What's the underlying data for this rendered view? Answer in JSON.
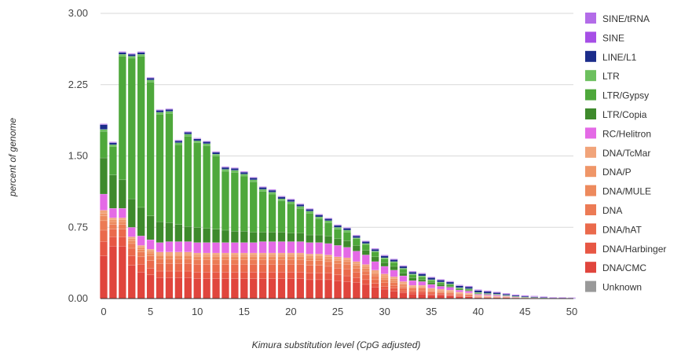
{
  "chart_data": {
    "type": "bar",
    "stacked": true,
    "title": "",
    "xlabel": "Kimura substitution level (CpG adjusted)",
    "ylabel": "percent of genome",
    "xlim": [
      0,
      50
    ],
    "ylim": [
      0,
      3.0
    ],
    "y_ticks": [
      "0.00",
      "0.75",
      "1.50",
      "2.25",
      "3.00"
    ],
    "x_ticks": [
      "0",
      "5",
      "10",
      "15",
      "20",
      "25",
      "30",
      "35",
      "40",
      "45",
      "50"
    ],
    "grid": true,
    "legend_position": "right",
    "categories": [
      0,
      1,
      2,
      3,
      4,
      5,
      6,
      7,
      8,
      9,
      10,
      11,
      12,
      13,
      14,
      15,
      16,
      17,
      18,
      19,
      20,
      21,
      22,
      23,
      24,
      25,
      26,
      27,
      28,
      29,
      30,
      31,
      32,
      33,
      34,
      35,
      36,
      37,
      38,
      39,
      40,
      41,
      42,
      43,
      44,
      45,
      46,
      47,
      48,
      49,
      50
    ],
    "series": [
      {
        "name": "Unknown",
        "color": "#999999",
        "values": [
          0,
          0,
          0,
          0,
          0,
          0,
          0,
          0,
          0,
          0,
          0,
          0,
          0,
          0,
          0,
          0,
          0,
          0,
          0,
          0,
          0,
          0,
          0,
          0,
          0,
          0,
          0,
          0,
          0,
          0,
          0,
          0,
          0,
          0,
          0,
          0,
          0,
          0,
          0,
          0,
          0,
          0,
          0,
          0,
          0,
          0,
          0,
          0,
          0,
          0,
          0
        ]
      },
      {
        "name": "DNA/CMC",
        "color": "#e0453d",
        "values": [
          0.45,
          0.55,
          0.55,
          0.35,
          0.28,
          0.25,
          0.22,
          0.22,
          0.22,
          0.22,
          0.21,
          0.21,
          0.21,
          0.21,
          0.21,
          0.21,
          0.21,
          0.21,
          0.21,
          0.21,
          0.21,
          0.21,
          0.2,
          0.2,
          0.2,
          0.19,
          0.18,
          0.17,
          0.15,
          0.12,
          0.1,
          0.08,
          0.06,
          0.05,
          0.05,
          0.04,
          0.04,
          0.03,
          0.02,
          0.02,
          0.01,
          0.01,
          0.01,
          0.01,
          0.005,
          0.004,
          0.003,
          0.002,
          0.001,
          0.001,
          0
        ]
      },
      {
        "name": "DNA/Harbinger",
        "color": "#e75744",
        "values": [
          0.15,
          0.1,
          0.1,
          0.1,
          0.08,
          0.07,
          0.07,
          0.07,
          0.07,
          0.07,
          0.07,
          0.07,
          0.07,
          0.07,
          0.07,
          0.07,
          0.07,
          0.07,
          0.07,
          0.07,
          0.07,
          0.07,
          0.07,
          0.07,
          0.07,
          0.06,
          0.06,
          0.05,
          0.05,
          0.04,
          0.03,
          0.03,
          0.02,
          0.02,
          0.02,
          0.01,
          0.01,
          0.01,
          0.01,
          0.005,
          0.005,
          0.004,
          0.003,
          0.002,
          0.002,
          0.001,
          0.001,
          0.001,
          0,
          0,
          0
        ]
      },
      {
        "name": "DNA/hAT",
        "color": "#ea6a4c",
        "values": [
          0.12,
          0.08,
          0.08,
          0.08,
          0.08,
          0.08,
          0.08,
          0.08,
          0.08,
          0.08,
          0.08,
          0.08,
          0.08,
          0.08,
          0.08,
          0.08,
          0.08,
          0.08,
          0.08,
          0.08,
          0.08,
          0.08,
          0.08,
          0.08,
          0.07,
          0.07,
          0.07,
          0.06,
          0.05,
          0.04,
          0.04,
          0.03,
          0.03,
          0.02,
          0.02,
          0.02,
          0.01,
          0.01,
          0.01,
          0.01,
          0.005,
          0.005,
          0.004,
          0.003,
          0.002,
          0.001,
          0.001,
          0.001,
          0,
          0,
          0
        ]
      },
      {
        "name": "DNA",
        "color": "#ec7b55",
        "values": [
          0.1,
          0.05,
          0.05,
          0.05,
          0.05,
          0.05,
          0.05,
          0.05,
          0.05,
          0.05,
          0.05,
          0.05,
          0.05,
          0.05,
          0.05,
          0.05,
          0.05,
          0.05,
          0.05,
          0.05,
          0.05,
          0.05,
          0.05,
          0.05,
          0.05,
          0.05,
          0.05,
          0.04,
          0.04,
          0.04,
          0.03,
          0.03,
          0.02,
          0.02,
          0.02,
          0.01,
          0.01,
          0.01,
          0.01,
          0.01,
          0.005,
          0.004,
          0.003,
          0.002,
          0.002,
          0.001,
          0.001,
          0.001,
          0,
          0,
          0
        ]
      },
      {
        "name": "DNA/MULE",
        "color": "#ed8a5d",
        "values": [
          0.05,
          0.03,
          0.03,
          0.03,
          0.03,
          0.03,
          0.03,
          0.03,
          0.03,
          0.03,
          0.03,
          0.03,
          0.03,
          0.03,
          0.03,
          0.03,
          0.03,
          0.03,
          0.03,
          0.03,
          0.03,
          0.03,
          0.03,
          0.03,
          0.03,
          0.03,
          0.03,
          0.03,
          0.03,
          0.02,
          0.02,
          0.02,
          0.02,
          0.01,
          0.01,
          0.01,
          0.01,
          0.01,
          0.005,
          0.005,
          0.004,
          0.003,
          0.002,
          0.002,
          0.001,
          0.001,
          0.001,
          0,
          0,
          0,
          0
        ]
      },
      {
        "name": "DNA/P",
        "color": "#ef9668",
        "values": [
          0.03,
          0.02,
          0.02,
          0.02,
          0.02,
          0.02,
          0.02,
          0.02,
          0.02,
          0.02,
          0.02,
          0.02,
          0.02,
          0.02,
          0.02,
          0.02,
          0.02,
          0.02,
          0.02,
          0.02,
          0.02,
          0.02,
          0.02,
          0.02,
          0.02,
          0.02,
          0.02,
          0.02,
          0.02,
          0.02,
          0.02,
          0.02,
          0.01,
          0.01,
          0.01,
          0.01,
          0.01,
          0.01,
          0.005,
          0.005,
          0.004,
          0.003,
          0.002,
          0.002,
          0.001,
          0.001,
          0.001,
          0,
          0,
          0,
          0
        ]
      },
      {
        "name": "DNA/TcMar",
        "color": "#f1a47a",
        "values": [
          0.03,
          0.02,
          0.02,
          0.02,
          0.02,
          0.02,
          0.02,
          0.02,
          0.02,
          0.02,
          0.02,
          0.02,
          0.02,
          0.02,
          0.02,
          0.02,
          0.02,
          0.02,
          0.02,
          0.02,
          0.02,
          0.02,
          0.02,
          0.02,
          0.02,
          0.02,
          0.02,
          0.02,
          0.02,
          0.02,
          0.02,
          0.02,
          0.02,
          0.01,
          0.01,
          0.01,
          0.01,
          0.01,
          0.01,
          0.005,
          0.005,
          0.004,
          0.003,
          0.002,
          0.001,
          0.001,
          0.001,
          0,
          0,
          0,
          0
        ]
      },
      {
        "name": "RC/Helitron",
        "color": "#e46ae6",
        "values": [
          0.17,
          0.1,
          0.1,
          0.1,
          0.1,
          0.1,
          0.1,
          0.11,
          0.11,
          0.11,
          0.11,
          0.11,
          0.11,
          0.11,
          0.11,
          0.11,
          0.11,
          0.12,
          0.12,
          0.12,
          0.12,
          0.12,
          0.12,
          0.12,
          0.12,
          0.12,
          0.11,
          0.11,
          0.1,
          0.09,
          0.08,
          0.07,
          0.06,
          0.05,
          0.04,
          0.04,
          0.03,
          0.03,
          0.02,
          0.02,
          0.01,
          0.01,
          0.01,
          0.005,
          0.004,
          0.003,
          0.002,
          0.001,
          0,
          0,
          0
        ]
      },
      {
        "name": "LTR/Copia",
        "color": "#3e8a2c",
        "values": [
          0.38,
          0.35,
          0.3,
          0.3,
          0.3,
          0.25,
          0.22,
          0.2,
          0.18,
          0.16,
          0.16,
          0.15,
          0.14,
          0.13,
          0.12,
          0.12,
          0.11,
          0.1,
          0.1,
          0.1,
          0.09,
          0.09,
          0.08,
          0.08,
          0.08,
          0.07,
          0.07,
          0.06,
          0.05,
          0.05,
          0.04,
          0.04,
          0.03,
          0.03,
          0.02,
          0.02,
          0.02,
          0.01,
          0.01,
          0.01,
          0.005,
          0.005,
          0.004,
          0.003,
          0.002,
          0.001,
          0.001,
          0.001,
          0,
          0,
          0
        ]
      },
      {
        "name": "LTR/Gypsy",
        "color": "#4ea83b",
        "values": [
          0.28,
          0.3,
          1.3,
          1.48,
          1.59,
          1.41,
          1.13,
          1.15,
          0.84,
          0.95,
          0.89,
          0.87,
          0.77,
          0.62,
          0.62,
          0.58,
          0.53,
          0.43,
          0.4,
          0.33,
          0.31,
          0.26,
          0.23,
          0.17,
          0.14,
          0.1,
          0.09,
          0.07,
          0.06,
          0.05,
          0.04,
          0.04,
          0.04,
          0.03,
          0.03,
          0.02,
          0.02,
          0.02,
          0.01,
          0.01,
          0.01,
          0.005,
          0.005,
          0.004,
          0.003,
          0.002,
          0.001,
          0.001,
          0.001,
          0,
          0
        ]
      },
      {
        "name": "LTR",
        "color": "#6cc05e",
        "values": [
          0.02,
          0.02,
          0.02,
          0.02,
          0.02,
          0.02,
          0.02,
          0.02,
          0.02,
          0.02,
          0.02,
          0.02,
          0.02,
          0.02,
          0.02,
          0.02,
          0.02,
          0.02,
          0.02,
          0.02,
          0.02,
          0.02,
          0.02,
          0.02,
          0.02,
          0.02,
          0.02,
          0.01,
          0.01,
          0.01,
          0.01,
          0.01,
          0.01,
          0.01,
          0.01,
          0.01,
          0.005,
          0.005,
          0.005,
          0.004,
          0.003,
          0.002,
          0.002,
          0.001,
          0.001,
          0.001,
          0,
          0,
          0,
          0,
          0
        ]
      },
      {
        "name": "LINE/L1",
        "color": "#1b2c8a",
        "values": [
          0.05,
          0.02,
          0.02,
          0.02,
          0.02,
          0.02,
          0.02,
          0.02,
          0.02,
          0.02,
          0.02,
          0.02,
          0.02,
          0.02,
          0.02,
          0.02,
          0.02,
          0.02,
          0.02,
          0.02,
          0.02,
          0.02,
          0.02,
          0.02,
          0.02,
          0.02,
          0.02,
          0.02,
          0.02,
          0.02,
          0.02,
          0.02,
          0.02,
          0.02,
          0.02,
          0.02,
          0.02,
          0.02,
          0.02,
          0.02,
          0.02,
          0.02,
          0.015,
          0.012,
          0.01,
          0.008,
          0.006,
          0.005,
          0.004,
          0.003,
          0.002
        ]
      },
      {
        "name": "SINE",
        "color": "#a64fe6",
        "values": [
          0.005,
          0.005,
          0.005,
          0.005,
          0.005,
          0.005,
          0.005,
          0.005,
          0.005,
          0.005,
          0.005,
          0.005,
          0.005,
          0.005,
          0.005,
          0.005,
          0.005,
          0.005,
          0.005,
          0.005,
          0.005,
          0.005,
          0.005,
          0.005,
          0.005,
          0.005,
          0.005,
          0.005,
          0.005,
          0.005,
          0.005,
          0.005,
          0.005,
          0.005,
          0.005,
          0.005,
          0.005,
          0.005,
          0.005,
          0.005,
          0.005,
          0.005,
          0.005,
          0.005,
          0.005,
          0.005,
          0.005,
          0.005,
          0.005,
          0.005,
          0.005
        ]
      },
      {
        "name": "SINE/tRNA",
        "color": "#b36ce8",
        "values": [
          0.005,
          0.005,
          0.005,
          0.005,
          0.005,
          0.005,
          0.005,
          0.005,
          0.005,
          0.005,
          0.005,
          0.005,
          0.005,
          0.005,
          0.005,
          0.005,
          0.005,
          0.005,
          0.005,
          0.005,
          0.005,
          0.005,
          0.005,
          0.005,
          0.005,
          0.005,
          0.005,
          0.005,
          0.005,
          0.005,
          0.005,
          0.005,
          0.005,
          0.005,
          0.005,
          0.005,
          0.005,
          0.005,
          0.005,
          0.005,
          0.005,
          0.005,
          0.005,
          0.005,
          0.005,
          0.005,
          0.005,
          0.005,
          0.005,
          0.005,
          0.005
        ]
      }
    ],
    "legend": [
      {
        "label": "SINE/tRNA",
        "color": "#b36ce8"
      },
      {
        "label": "SINE",
        "color": "#a64fe6"
      },
      {
        "label": "LINE/L1",
        "color": "#1b2c8a"
      },
      {
        "label": "LTR",
        "color": "#6cc05e"
      },
      {
        "label": "LTR/Gypsy",
        "color": "#4ea83b"
      },
      {
        "label": "LTR/Copia",
        "color": "#3e8a2c"
      },
      {
        "label": "RC/Helitron",
        "color": "#e46ae6"
      },
      {
        "label": "DNA/TcMar",
        "color": "#f1a47a"
      },
      {
        "label": "DNA/P",
        "color": "#ef9668"
      },
      {
        "label": "DNA/MULE",
        "color": "#ed8a5d"
      },
      {
        "label": "DNA",
        "color": "#ec7b55"
      },
      {
        "label": "DNA/hAT",
        "color": "#ea6a4c"
      },
      {
        "label": "DNA/Harbinger",
        "color": "#e75744"
      },
      {
        "label": "DNA/CMC",
        "color": "#e0453d"
      },
      {
        "label": "Unknown",
        "color": "#999999"
      }
    ]
  }
}
